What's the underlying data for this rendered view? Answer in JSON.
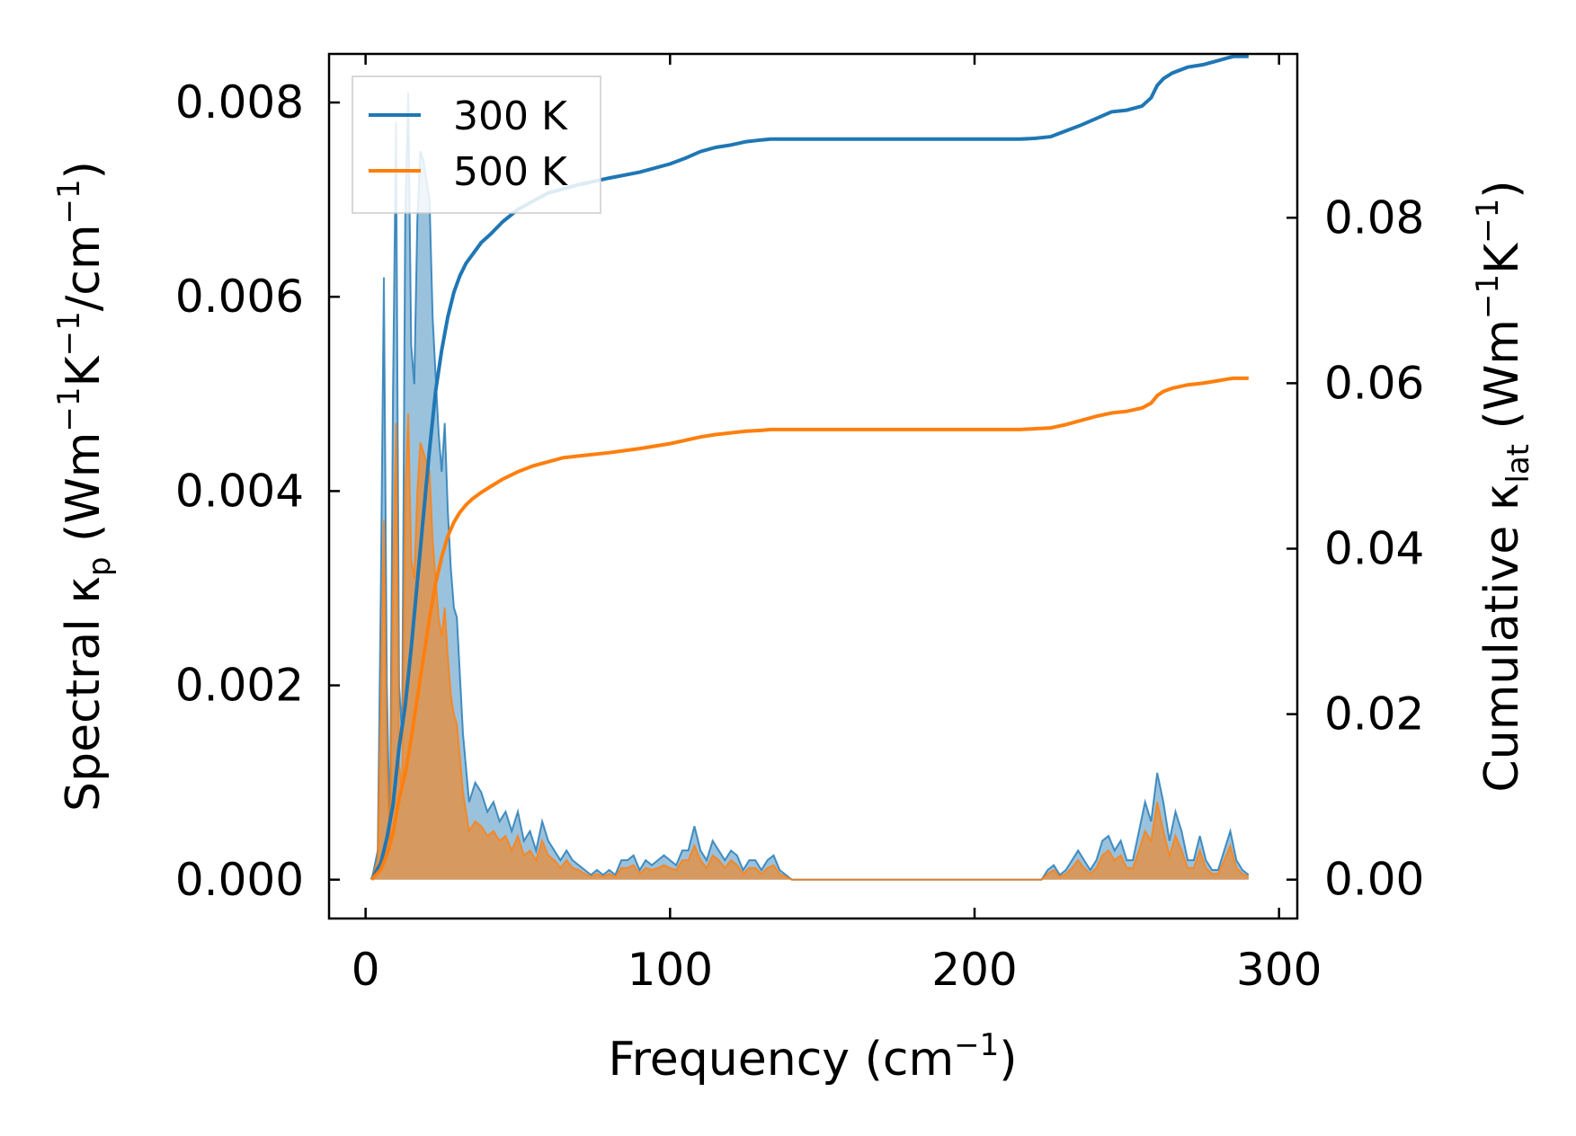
{
  "chart_data": {
    "type": "line",
    "x_axis": {
      "label_main": "Frequency (cm",
      "label_sup": "−1",
      "label_end": ")",
      "range": [
        -12,
        306
      ],
      "ticks": [
        0,
        100,
        200,
        300
      ],
      "tick_labels": [
        "0",
        "100",
        "200",
        "300"
      ]
    },
    "y_left": {
      "label": {
        "p1": "Spectral κ",
        "sub": "p",
        "p2": " (Wm",
        "sup1": "−1",
        "p3": "K",
        "sup2": "−1",
        "p4": "/cm",
        "sup3": "−1",
        "p5": ")"
      },
      "range": [
        -0.0004,
        0.0085
      ],
      "ticks": [
        0,
        0.002,
        0.004,
        0.006,
        0.008
      ],
      "tick_labels": [
        "0.000",
        "0.002",
        "0.004",
        "0.006",
        "0.008"
      ]
    },
    "y_right": {
      "label": {
        "p1": "Cumulative κ",
        "sub": "lat",
        "p2": " (Wm",
        "sup1": "−1",
        "p3": "K",
        "sup2": "−1",
        "p4": ")"
      },
      "range": [
        -0.0047,
        0.0998
      ],
      "ticks": [
        0,
        0.02,
        0.04,
        0.06,
        0.08
      ],
      "tick_labels": [
        "0.00",
        "0.02",
        "0.04",
        "0.06",
        "0.08"
      ]
    },
    "legend": {
      "placement": "upper-left"
    },
    "series": [
      {
        "name": "300 K",
        "color": "#1f77b4",
        "spectral_x": [
          2,
          4,
          5,
          6,
          7,
          8,
          9,
          10,
          11,
          12,
          13,
          14,
          15,
          16,
          17,
          18,
          19,
          20,
          21,
          22,
          23,
          24,
          25,
          26,
          27,
          28,
          29,
          30,
          32,
          34,
          36,
          38,
          40,
          42,
          44,
          46,
          48,
          50,
          52,
          54,
          56,
          58,
          60,
          62,
          64,
          66,
          68,
          70,
          72,
          74,
          76,
          78,
          80,
          82,
          84,
          86,
          88,
          90,
          92,
          94,
          96,
          98,
          100,
          102,
          104,
          106,
          108,
          110,
          112,
          114,
          116,
          118,
          120,
          122,
          124,
          126,
          128,
          130,
          132,
          134,
          136,
          140,
          150,
          160,
          170,
          180,
          190,
          200,
          210,
          218,
          220,
          222,
          224,
          226,
          228,
          230,
          232,
          234,
          236,
          238,
          240,
          242,
          244,
          246,
          248,
          250,
          252,
          254,
          256,
          258,
          260,
          262,
          264,
          266,
          268,
          270,
          272,
          274,
          276,
          278,
          280,
          282,
          284,
          286,
          288,
          290
        ],
        "spectral_y": [
          0,
          0.0003,
          0.003,
          0.0062,
          0.002,
          0.0004,
          0.005,
          0.0078,
          0.002,
          0.0015,
          0.0068,
          0.0081,
          0.0055,
          0.0051,
          0.0068,
          0.0075,
          0.0074,
          0.0072,
          0.007,
          0.0058,
          0.0052,
          0.0046,
          0.0042,
          0.0047,
          0.0038,
          0.0032,
          0.0028,
          0.0027,
          0.0015,
          0.0008,
          0.001,
          0.0009,
          0.0007,
          0.0008,
          0.0006,
          0.0007,
          0.0005,
          0.0007,
          0.0004,
          0.0005,
          0.0003,
          0.0006,
          0.0004,
          0.0003,
          0.0002,
          0.0003,
          0.0002,
          0.00015,
          0.0001,
          5e-05,
          0.0001,
          5e-05,
          0.0001,
          5e-05,
          0.0002,
          0.0002,
          0.00025,
          0.0001,
          0.0002,
          0.00015,
          0.0002,
          0.00025,
          0.0002,
          0.00015,
          0.0003,
          0.0003,
          0.00055,
          0.0003,
          0.0002,
          0.0004,
          0.0003,
          0.0002,
          0.0003,
          0.00025,
          0.0001,
          0.0002,
          0.0002,
          0.0001,
          0.0002,
          0.00025,
          0.0001,
          0,
          0,
          0,
          0,
          0,
          0,
          0,
          0,
          0,
          0,
          0,
          0.0001,
          0.00015,
          5e-05,
          0.0001,
          0.0002,
          0.0003,
          0.0002,
          0.0001,
          0.0002,
          0.0004,
          0.00045,
          0.0003,
          0.0004,
          0.0002,
          0.0002,
          0.0005,
          0.0008,
          0.0006,
          0.0011,
          0.0008,
          0.0004,
          0.0007,
          0.0005,
          0.0002,
          0.0002,
          0.00045,
          0.0002,
          0.0001,
          0.0001,
          0.0003,
          0.0005,
          0.0002,
          0.0001,
          5e-05,
          0
        ]
      },
      {
        "name": "500 K",
        "color": "#ff7f0e",
        "spectral_x": [
          2,
          4,
          5,
          6,
          7,
          8,
          9,
          10,
          11,
          12,
          13,
          14,
          15,
          16,
          17,
          18,
          19,
          20,
          21,
          22,
          23,
          24,
          25,
          26,
          27,
          28,
          29,
          30,
          32,
          34,
          36,
          38,
          40,
          42,
          44,
          46,
          48,
          50,
          52,
          54,
          56,
          58,
          60,
          62,
          64,
          66,
          68,
          70,
          72,
          74,
          76,
          78,
          80,
          82,
          84,
          86,
          88,
          90,
          92,
          94,
          96,
          98,
          100,
          102,
          104,
          106,
          108,
          110,
          112,
          114,
          116,
          118,
          120,
          122,
          124,
          126,
          128,
          130,
          132,
          134,
          136,
          140,
          150,
          160,
          170,
          180,
          190,
          200,
          210,
          218,
          220,
          222,
          224,
          226,
          228,
          230,
          232,
          234,
          236,
          238,
          240,
          242,
          244,
          246,
          248,
          250,
          252,
          254,
          256,
          258,
          260,
          262,
          264,
          266,
          268,
          270,
          272,
          274,
          276,
          278,
          280,
          282,
          284,
          286,
          288,
          290
        ],
        "spectral_y": [
          0,
          0.0002,
          0.0018,
          0.0037,
          0.0012,
          0.0003,
          0.003,
          0.0047,
          0.0012,
          0.0009,
          0.004,
          0.0048,
          0.0033,
          0.0031,
          0.004,
          0.0045,
          0.0044,
          0.0043,
          0.0042,
          0.0035,
          0.0031,
          0.0027,
          0.0025,
          0.0028,
          0.0023,
          0.0019,
          0.0017,
          0.0016,
          0.0009,
          0.0005,
          0.0006,
          0.00055,
          0.00045,
          0.0005,
          0.0004,
          0.00045,
          0.0003,
          0.00045,
          0.00025,
          0.0003,
          0.0002,
          0.0004,
          0.00025,
          0.0002,
          0.00012,
          0.0002,
          0.00012,
          0.0001,
          6e-05,
          3e-05,
          6e-05,
          3e-05,
          6e-05,
          3e-05,
          0.00012,
          0.00012,
          0.00015,
          6e-05,
          0.00012,
          0.0001,
          0.00012,
          0.00015,
          0.00012,
          0.0001,
          0.0002,
          0.0002,
          0.00035,
          0.0002,
          0.00012,
          0.00025,
          0.0002,
          0.00012,
          0.0002,
          0.00015,
          6e-05,
          0.00012,
          0.00012,
          6e-05,
          0.00012,
          0.00015,
          6e-05,
          0,
          0,
          0,
          0,
          0,
          0,
          0,
          0,
          0,
          0,
          0,
          6e-05,
          0.0001,
          3e-05,
          6e-05,
          0.00012,
          0.0002,
          0.00012,
          6e-05,
          0.00012,
          0.00025,
          0.0003,
          0.0002,
          0.00025,
          0.00012,
          0.00012,
          0.0003,
          0.0005,
          0.0004,
          0.0008,
          0.0005,
          0.00025,
          0.00045,
          0.0003,
          0.00012,
          0.00012,
          0.0003,
          0.00012,
          6e-05,
          6e-05,
          0.0002,
          0.00035,
          0.00012,
          6e-05,
          3e-05,
          0
        ]
      }
    ],
    "cumulative_series": [
      {
        "name": "300 K",
        "color": "#1f77b4",
        "x": [
          2,
          5,
          7,
          9,
          11,
          13,
          15,
          17,
          19,
          21,
          23,
          25,
          27,
          29,
          31,
          33,
          35,
          38,
          41,
          45,
          50,
          55,
          60,
          65,
          70,
          80,
          90,
          100,
          105,
          110,
          115,
          120,
          125,
          130,
          133,
          135,
          150,
          180,
          200,
          215,
          220,
          225,
          230,
          235,
          240,
          245,
          250,
          255,
          258,
          260,
          262,
          265,
          270,
          275,
          280,
          283,
          285,
          290
        ],
        "y": [
          0,
          0.002,
          0.005,
          0.009,
          0.016,
          0.021,
          0.028,
          0.036,
          0.044,
          0.052,
          0.059,
          0.064,
          0.068,
          0.071,
          0.073,
          0.0745,
          0.0755,
          0.077,
          0.078,
          0.0795,
          0.081,
          0.082,
          0.083,
          0.0835,
          0.084,
          0.0848,
          0.0855,
          0.0865,
          0.0872,
          0.088,
          0.0885,
          0.0888,
          0.0892,
          0.0894,
          0.0895,
          0.0895,
          0.0895,
          0.0895,
          0.0895,
          0.0895,
          0.0896,
          0.0898,
          0.0905,
          0.0912,
          0.092,
          0.0928,
          0.093,
          0.0935,
          0.0945,
          0.096,
          0.0968,
          0.0975,
          0.0982,
          0.0985,
          0.099,
          0.0993,
          0.0995,
          0.0995
        ]
      },
      {
        "name": "500 K",
        "color": "#ff7f0e",
        "x": [
          2,
          5,
          7,
          9,
          11,
          13,
          15,
          17,
          19,
          21,
          23,
          25,
          27,
          29,
          31,
          33,
          35,
          38,
          41,
          45,
          50,
          55,
          60,
          65,
          70,
          80,
          90,
          100,
          105,
          110,
          115,
          120,
          125,
          130,
          133,
          135,
          150,
          180,
          200,
          215,
          220,
          225,
          230,
          235,
          240,
          245,
          250,
          255,
          258,
          260,
          262,
          265,
          270,
          275,
          280,
          283,
          285,
          290
        ],
        "y": [
          0,
          0.0012,
          0.003,
          0.0055,
          0.0098,
          0.0128,
          0.017,
          0.022,
          0.0268,
          0.0316,
          0.0358,
          0.039,
          0.0415,
          0.0432,
          0.0444,
          0.0453,
          0.046,
          0.0468,
          0.0475,
          0.0484,
          0.0493,
          0.05,
          0.0505,
          0.051,
          0.0512,
          0.0516,
          0.0521,
          0.0527,
          0.0531,
          0.0535,
          0.0538,
          0.054,
          0.0542,
          0.0543,
          0.0544,
          0.0544,
          0.0544,
          0.0544,
          0.0544,
          0.0544,
          0.0545,
          0.0546,
          0.055,
          0.0555,
          0.056,
          0.0564,
          0.0566,
          0.057,
          0.0576,
          0.0585,
          0.059,
          0.0594,
          0.0598,
          0.06,
          0.0603,
          0.0605,
          0.0606,
          0.0606
        ]
      }
    ]
  }
}
